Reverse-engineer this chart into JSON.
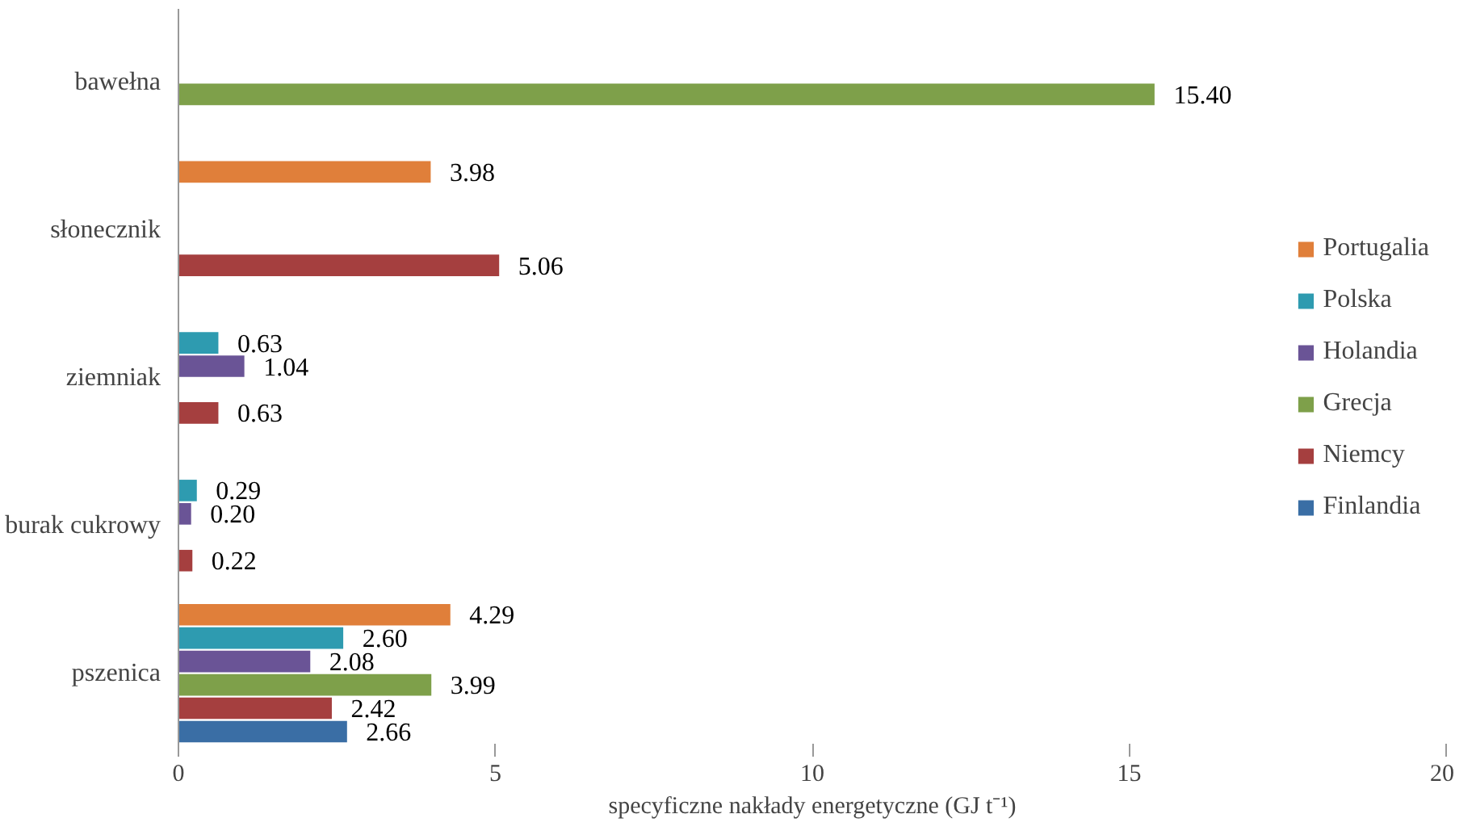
{
  "chart_data": {
    "type": "bar",
    "orientation": "horizontal",
    "xlabel": "specyficzne nakłady energetyczne (GJ t⁻¹)",
    "categories": [
      "bawełna",
      "słonecznik",
      "ziemniak",
      "burak cukrowy",
      "pszenica"
    ],
    "xlim": [
      0,
      20
    ],
    "xticks": [
      0,
      5,
      10,
      15,
      20
    ],
    "grid": false,
    "legend": "right",
    "series": [
      {
        "name": "Portugalia",
        "color": "#e07f3a",
        "values": [
          null,
          3.98,
          null,
          null,
          4.29
        ],
        "value_labels": [
          null,
          "3.98",
          null,
          null,
          "4.29"
        ]
      },
      {
        "name": "Polska",
        "color": "#2e9bb0",
        "values": [
          null,
          null,
          0.63,
          0.29,
          2.6
        ],
        "value_labels": [
          null,
          null,
          "0.63",
          "0.29",
          "2.60"
        ]
      },
      {
        "name": "Holandia",
        "color": "#6a5496",
        "values": [
          null,
          null,
          1.04,
          0.2,
          2.08
        ],
        "value_labels": [
          null,
          null,
          "1.04",
          "0.20",
          "2.08"
        ]
      },
      {
        "name": "Grecja",
        "color": "#7ea04a",
        "values": [
          15.4,
          null,
          null,
          null,
          3.99
        ],
        "value_labels": [
          "15.40",
          null,
          null,
          null,
          "3.99"
        ]
      },
      {
        "name": "Niemcy",
        "color": "#a53f3f",
        "values": [
          null,
          5.06,
          0.63,
          0.22,
          2.42
        ],
        "value_labels": [
          null,
          "5.06",
          "0.63",
          "0.22",
          "2.42"
        ]
      },
      {
        "name": "Finlandia",
        "color": "#3a6ea5",
        "values": [
          null,
          null,
          null,
          null,
          2.66
        ],
        "value_labels": [
          null,
          null,
          null,
          null,
          "2.66"
        ]
      }
    ]
  }
}
